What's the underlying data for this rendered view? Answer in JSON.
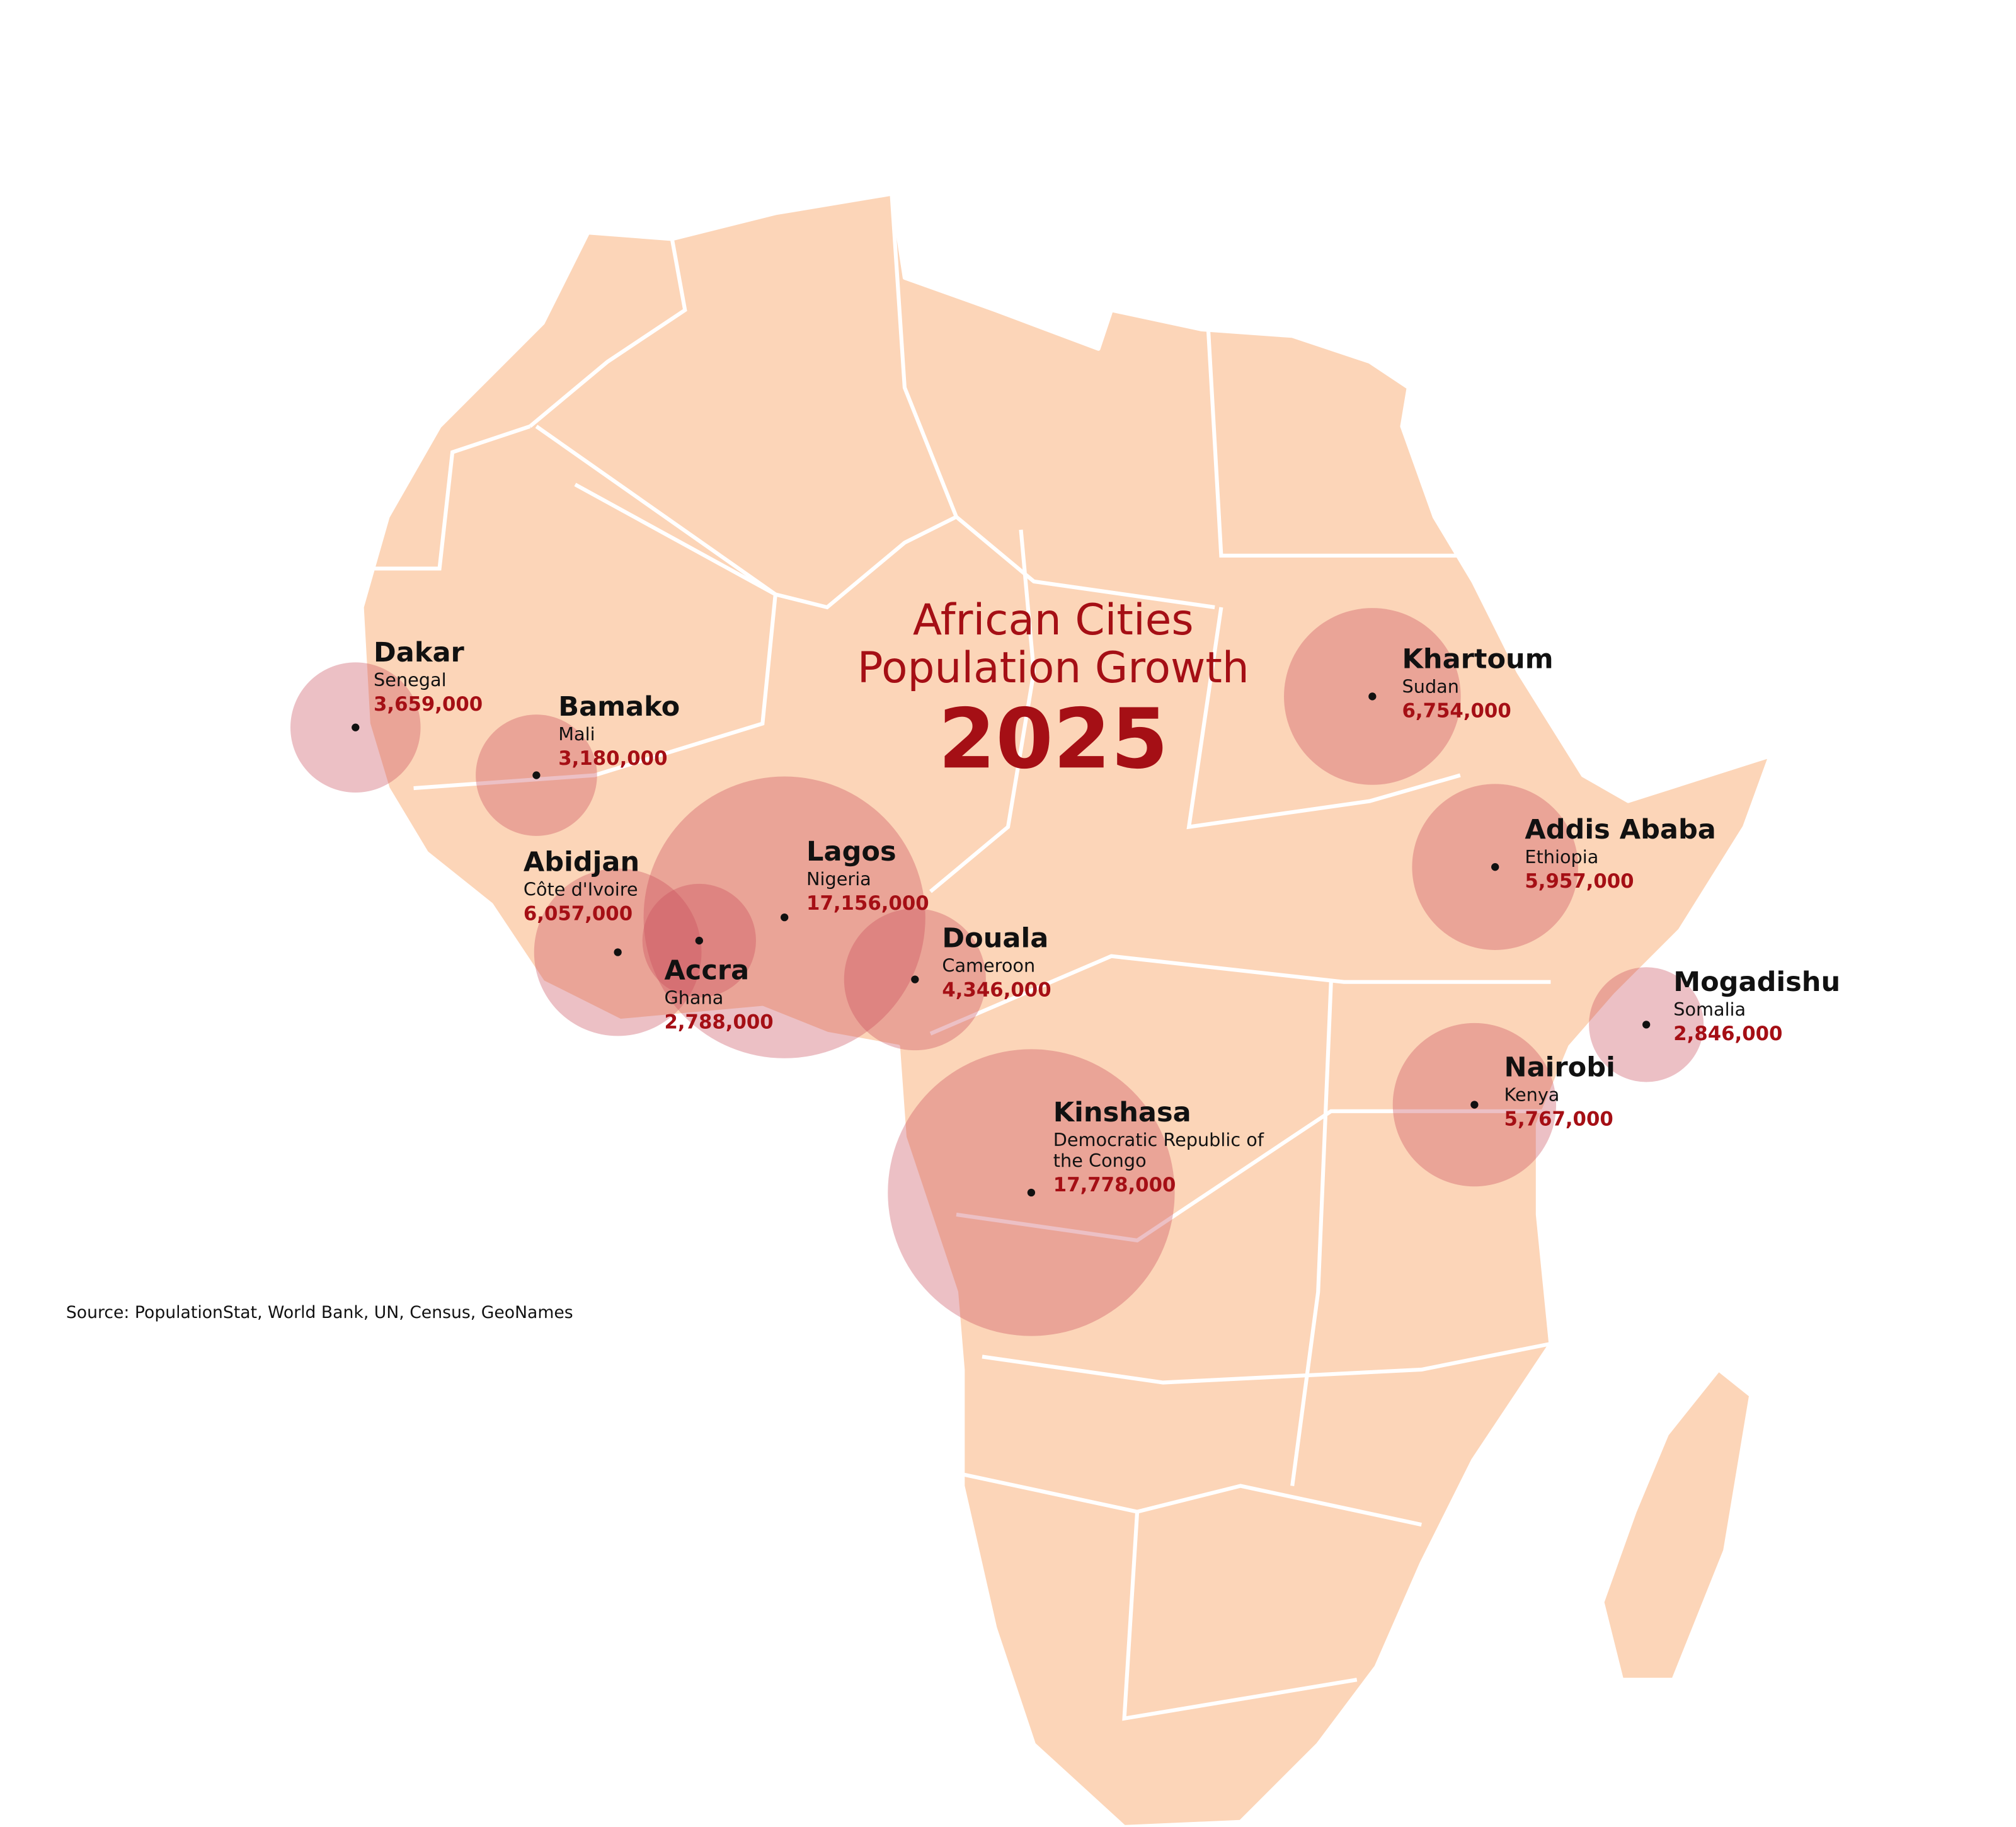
{
  "chart_data": {
    "type": "bubble-map",
    "title": "African Cities Population Growth",
    "subtitle": "2025",
    "source": "Source: PopulationStat, World Bank, UN, Census, GeoNames",
    "categories": [
      "Dakar",
      "Bamako",
      "Abidjan",
      "Accra",
      "Lagos",
      "Douala",
      "Kinshasa",
      "Khartoum",
      "Addis Ababa",
      "Mogadishu",
      "Nairobi"
    ],
    "countries": [
      "Senegal",
      "Mali",
      "Côte d'Ivoire",
      "Ghana",
      "Nigeria",
      "Cameroon",
      "Democratic Republic of the Congo",
      "Sudan",
      "Ethiopia",
      "Somalia",
      "Kenya"
    ],
    "values": [
      3659000,
      3180000,
      6057000,
      2788000,
      17156000,
      4346000,
      17778000,
      6754000,
      5957000,
      2846000,
      5767000
    ],
    "value_labels": [
      "3,659,000",
      "3,180,000",
      "6,057,000",
      "2,788,000",
      "17,156,000",
      "4,346,000",
      "17,778,000",
      "6,754,000",
      "5,957,000",
      "2,846,000",
      "5,767,000"
    ],
    "color": "#a50f15"
  }
}
